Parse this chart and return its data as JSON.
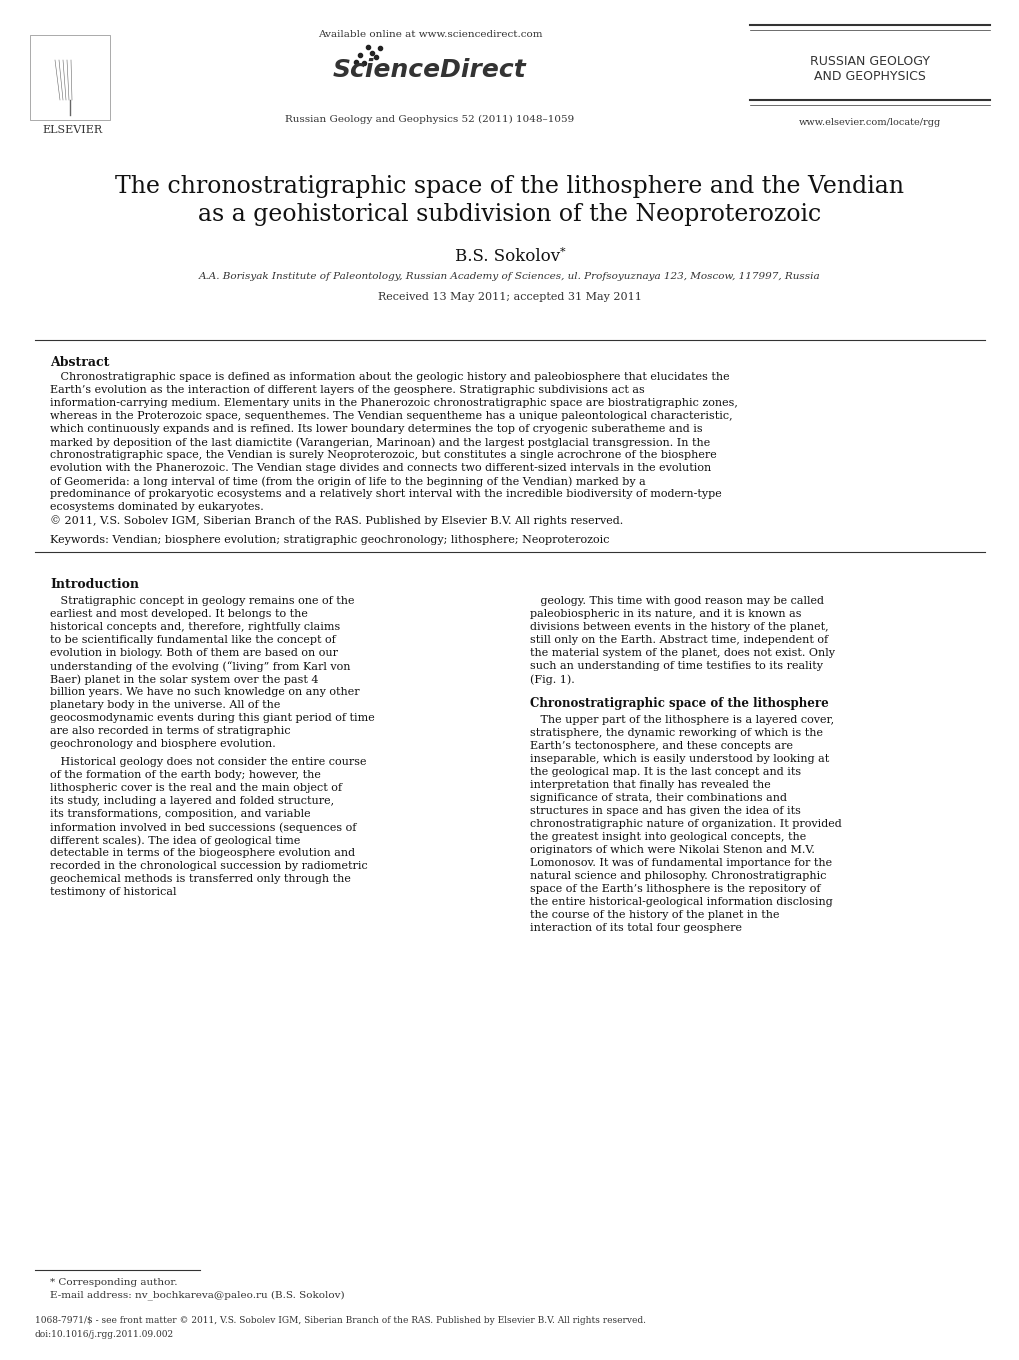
{
  "bg_color": "#ffffff",
  "header": {
    "available_online": "Available online at www.sciencedirect.com",
    "journal_name": "Russian Geology and Geophysics 52 (2011) 1048–1059",
    "elsevier_text": "ELSEVIER",
    "rgg_line1": "RUSSIAN GEOLOGY",
    "rgg_line2": "AND GEOPHYSICS",
    "website": "www.elsevier.com/locate/rgg"
  },
  "title_line1": "The chronostratigraphic space of the lithosphere and the Vendian",
  "title_line2": "as a geohistorical subdivision of the Neoproterozoic",
  "author": "B.S. Sokolov *",
  "affiliation": "A.A. Borisyak Institute of Paleontology, Russian Academy of Sciences, ul. Profsoyuznaya 123, Moscow, 117997, Russia",
  "received": "Received 13 May 2011; accepted 31 May 2011",
  "abstract_label": "Abstract",
  "abstract_text": "Chronostratigraphic space is defined as information about the geologic history and paleobiosphere that elucidates the Earth’s evolution as the interaction of different layers of the geosphere. Stratigraphic subdivisions act as information-carrying medium. Elementary units in the Phanerozoic chronostratigraphic space are biostratigraphic zones, whereas in the Proterozoic space, sequenthemes. The Vendian sequentheme has a unique paleontological characteristic, which continuously expands and is refined. Its lower boundary determines the top of cryogenic suberatheme and is marked by deposition of the last diamictite (Varangerian, Marinoan) and the largest postglacial transgression. In the chronostratigraphic space, the Vendian is surely Neoproterozoic, but constitutes a single acrochrone of the biosphere evolution with the Phanerozoic. The Vendian stage divides and connects two different-sized intervals in the evolution of Geomerida: a long interval of time (from the origin of life to the beginning of the Vendian) marked by a predominance of prokaryotic ecosystems and a relatively short interval with the incredible biodiversity of modern-type ecosystems dominated by eukaryotes.",
  "copyright": "© 2011, V.S. Sobolev IGM, Siberian Branch of the RAS. Published by Elsevier B.V. All rights reserved.",
  "keywords_label": "Keywords:",
  "keywords": "Vendian; biosphere evolution; stratigraphic geochronology; lithosphere; Neoproterozoic",
  "intro_label": "Introduction",
  "intro_col1_p1": "Stratigraphic concept in geology remains one of the earliest and most developed. It belongs to the historical concepts and, therefore, rightfully claims to be scientifically fundamental like the concept of evolution in biology. Both of them are based on our understanding of the evolving (“living” from Karl von Baer) planet in the solar system over the past 4 billion years. We have no such knowledge on any other planetary body in the universe. All of the geocosmodynamic events during this giant period of time are also recorded in terms of stratigraphic geochronology and biosphere evolution.",
  "intro_col1_p2": "Historical geology does not consider the entire course of the formation of the earth body; however, the lithospheric cover is the real and the main object of its study, including a layered and folded structure, its transformations, composition, and variable information involved in bed successions (sequences of different scales). The idea of geological time detectable in terms of the biogeosphere evolution and recorded in the chronological succession by radiometric geochemical methods is transferred only through the testimony of historical",
  "intro_col2_p1": "geology. This time with good reason may be called paleobiospheric in its nature, and it is known as divisions between events in the history of the planet, still only on the Earth. Abstract time, independent of the material system of the planet, does not exist. Only such an understanding of time testifies to its reality (Fig. 1).",
  "chrono_section": "Chronostratigraphic space of the lithosphere",
  "chrono_col2_p1": "The upper part of the lithosphere is a layered cover, stratisphere, the dynamic reworking of which is the Earth’s tectonosphere, and these concepts are inseparable, which is easily understood by looking at the geological map. It is the last concept and its interpretation that finally has revealed the significance of strata, their combinations and structures in space and has given the idea of its chronostratigraphic nature of organization. It provided the greatest insight into geological concepts, the originators of which were Nikolai Stenon and M.V. Lomonosov. It was of fundamental importance for the natural science and philosophy. Chronostratigraphic space of the Earth’s lithosphere is the repository of the entire historical-geological information disclosing the course of the history of the planet in the interaction of its total four geosphere",
  "footnote_star": "* Corresponding author.",
  "footnote_email": "E-mail address: nv_bochkareva@paleo.ru (B.S. Sokolov)",
  "footer_issn": "1068-7971/$ - see front matter © 2011, V.S. Sobolev IGM, Siberian Branch of the RAS. Published by Elsevier B.V. All rights reserved.",
  "footer_doi": "doi:10.1016/j.rgg.2011.09.002"
}
